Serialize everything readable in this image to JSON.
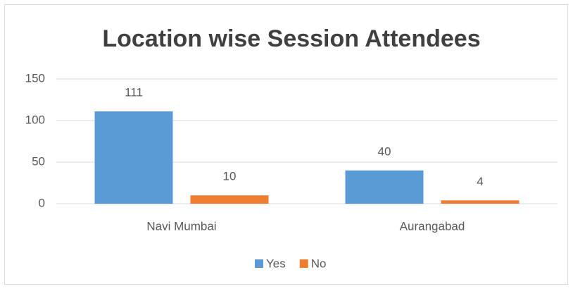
{
  "chart_data": {
    "type": "bar",
    "title": "Location wise Session Attendees",
    "categories": [
      "Navi Mumbai",
      "Aurangabad"
    ],
    "series": [
      {
        "name": "Yes",
        "color": "#5b9bd5",
        "values": [
          111,
          40
        ]
      },
      {
        "name": "No",
        "color": "#ed7d31",
        "values": [
          10,
          4
        ]
      }
    ],
    "ylim": [
      0,
      150
    ],
    "yticks": [
      0,
      50,
      100,
      150
    ],
    "grid": true,
    "legend": "bottom",
    "data_labels": true
  }
}
